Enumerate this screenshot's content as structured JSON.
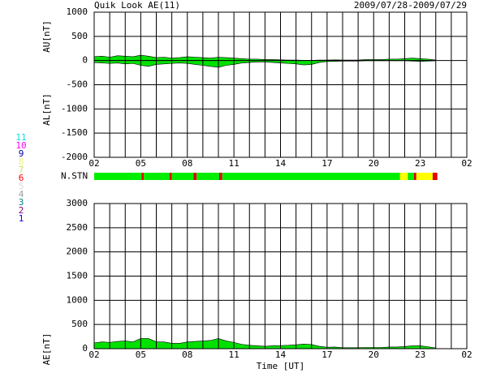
{
  "chart_data": [
    {
      "type": "area",
      "title": "Quik Look AE(11)",
      "subtitle": "2009/07/28-2009/07/29",
      "ylabels": [
        "AU[nT]",
        "AL[nT]"
      ],
      "xlim": [
        0,
        24
      ],
      "xticks": [
        {
          "value": 0,
          "label": "02"
        },
        {
          "value": 3,
          "label": "05"
        },
        {
          "value": 6,
          "label": "08"
        },
        {
          "value": 9,
          "label": "11"
        },
        {
          "value": 12,
          "label": "14"
        },
        {
          "value": 15,
          "label": "17"
        },
        {
          "value": 18,
          "label": "20"
        },
        {
          "value": 21,
          "label": "23"
        },
        {
          "value": 24,
          "label": "02"
        }
      ],
      "xgridlines": [
        0,
        1,
        2,
        3,
        4,
        5,
        6,
        7,
        8,
        9,
        10,
        11,
        12,
        13,
        14,
        15,
        16,
        17,
        18,
        19,
        20,
        21,
        22,
        23,
        24
      ],
      "ylim": [
        -2000,
        1000
      ],
      "yticks": [
        -2000,
        -1500,
        -1000,
        -500,
        0,
        500,
        1000
      ],
      "grid": true,
      "x": [
        0,
        0.5,
        1,
        1.5,
        2,
        2.5,
        3,
        3.5,
        4,
        4.5,
        5,
        5.5,
        6,
        6.5,
        7,
        7.5,
        8,
        8.5,
        9,
        9.5,
        10,
        10.5,
        11,
        11.5,
        12,
        12.5,
        13,
        13.5,
        14,
        14.5,
        15,
        15.5,
        16,
        16.5,
        17,
        17.5,
        18,
        18.5,
        19,
        19.5,
        20,
        20.5,
        21,
        21.5,
        22
      ],
      "series": [
        {
          "name": "AU",
          "color": "#00e000",
          "values": [
            80,
            90,
            70,
            100,
            90,
            80,
            110,
            90,
            60,
            70,
            50,
            60,
            80,
            70,
            60,
            50,
            70,
            60,
            50,
            40,
            30,
            30,
            20,
            20,
            15,
            10,
            10,
            5,
            5,
            10,
            10,
            15,
            10,
            10,
            10,
            20,
            20,
            20,
            30,
            30,
            40,
            50,
            40,
            30,
            10
          ]
        },
        {
          "name": "AL",
          "color": "#00e000",
          "values": [
            -40,
            -50,
            -60,
            -50,
            -70,
            -60,
            -100,
            -120,
            -80,
            -70,
            -60,
            -50,
            -60,
            -80,
            -100,
            -120,
            -140,
            -100,
            -80,
            -50,
            -40,
            -30,
            -30,
            -40,
            -50,
            -60,
            -70,
            -90,
            -80,
            -40,
            -20,
            -20,
            -10,
            -10,
            -10,
            -5,
            -5,
            -5,
            -5,
            -5,
            -5,
            -10,
            -20,
            -10,
            -5
          ]
        }
      ]
    },
    {
      "type": "area",
      "ylabels": [
        "AE[nT]"
      ],
      "xlabel": "Time [UT]",
      "xlim": [
        0,
        24
      ],
      "xticks": [
        {
          "value": 0,
          "label": "02"
        },
        {
          "value": 3,
          "label": "05"
        },
        {
          "value": 6,
          "label": "08"
        },
        {
          "value": 9,
          "label": "11"
        },
        {
          "value": 12,
          "label": "14"
        },
        {
          "value": 15,
          "label": "17"
        },
        {
          "value": 18,
          "label": "20"
        },
        {
          "value": 21,
          "label": "23"
        },
        {
          "value": 24,
          "label": "02"
        }
      ],
      "xgridlines": [
        0,
        1,
        2,
        3,
        4,
        5,
        6,
        7,
        8,
        9,
        10,
        11,
        12,
        13,
        14,
        15,
        16,
        17,
        18,
        19,
        20,
        21,
        22,
        23,
        24
      ],
      "ylim": [
        0,
        3000
      ],
      "yticks": [
        0,
        500,
        1000,
        1500,
        2000,
        2500,
        3000
      ],
      "grid": true,
      "x": [
        0,
        0.5,
        1,
        1.5,
        2,
        2.5,
        3,
        3.5,
        4,
        4.5,
        5,
        5.5,
        6,
        6.5,
        7,
        7.5,
        8,
        8.5,
        9,
        9.5,
        10,
        10.5,
        11,
        11.5,
        12,
        12.5,
        13,
        13.5,
        14,
        14.5,
        15,
        15.5,
        16,
        16.5,
        17,
        17.5,
        18,
        18.5,
        19,
        19.5,
        20,
        20.5,
        21,
        21.5,
        22
      ],
      "series": [
        {
          "name": "AE",
          "color": "#00e000",
          "values": [
            120,
            140,
            130,
            150,
            160,
            140,
            210,
            210,
            140,
            140,
            110,
            110,
            140,
            150,
            160,
            170,
            210,
            160,
            130,
            90,
            70,
            60,
            50,
            60,
            65,
            70,
            80,
            95,
            85,
            50,
            30,
            35,
            20,
            20,
            20,
            25,
            25,
            25,
            35,
            35,
            45,
            60,
            60,
            40,
            15
          ]
        }
      ]
    }
  ],
  "station_bar": {
    "label": "N.STN",
    "segments": [
      {
        "start": 0,
        "end": 3.05,
        "color": "#00ee00"
      },
      {
        "start": 3.05,
        "end": 3.2,
        "color": "#e00000"
      },
      {
        "start": 3.2,
        "end": 4.85,
        "color": "#00ee00"
      },
      {
        "start": 4.85,
        "end": 5.0,
        "color": "#e00000"
      },
      {
        "start": 5.0,
        "end": 6.4,
        "color": "#00ee00"
      },
      {
        "start": 6.4,
        "end": 6.6,
        "color": "#e00000"
      },
      {
        "start": 6.6,
        "end": 8.05,
        "color": "#00ee00"
      },
      {
        "start": 8.05,
        "end": 8.25,
        "color": "#e00000"
      },
      {
        "start": 8.25,
        "end": 19.7,
        "color": "#00ee00"
      },
      {
        "start": 19.7,
        "end": 20.2,
        "color": "#ffff00"
      },
      {
        "start": 20.2,
        "end": 20.6,
        "color": "#00ee00"
      },
      {
        "start": 20.6,
        "end": 20.75,
        "color": "#e00000"
      },
      {
        "start": 20.75,
        "end": 21.8,
        "color": "#ffff00"
      },
      {
        "start": 21.8,
        "end": 22.1,
        "color": "#e00000"
      }
    ],
    "legend": [
      {
        "value": 11,
        "color": "#00e0e0"
      },
      {
        "value": 10,
        "color": "#ff00ff"
      },
      {
        "value": 9,
        "color": "#0000a0"
      },
      {
        "value": 8,
        "color": "#f0f080"
      },
      {
        "value": 7,
        "color": "#c8e060"
      },
      {
        "value": 6,
        "color": "#ff0000"
      },
      {
        "value": 5,
        "color": "#d8d8d8"
      },
      {
        "value": 4,
        "color": "#a0a0a0"
      },
      {
        "value": 3,
        "color": "#008080"
      },
      {
        "value": 2,
        "color": "#800080"
      },
      {
        "value": 1,
        "color": "#0000ff"
      }
    ]
  }
}
